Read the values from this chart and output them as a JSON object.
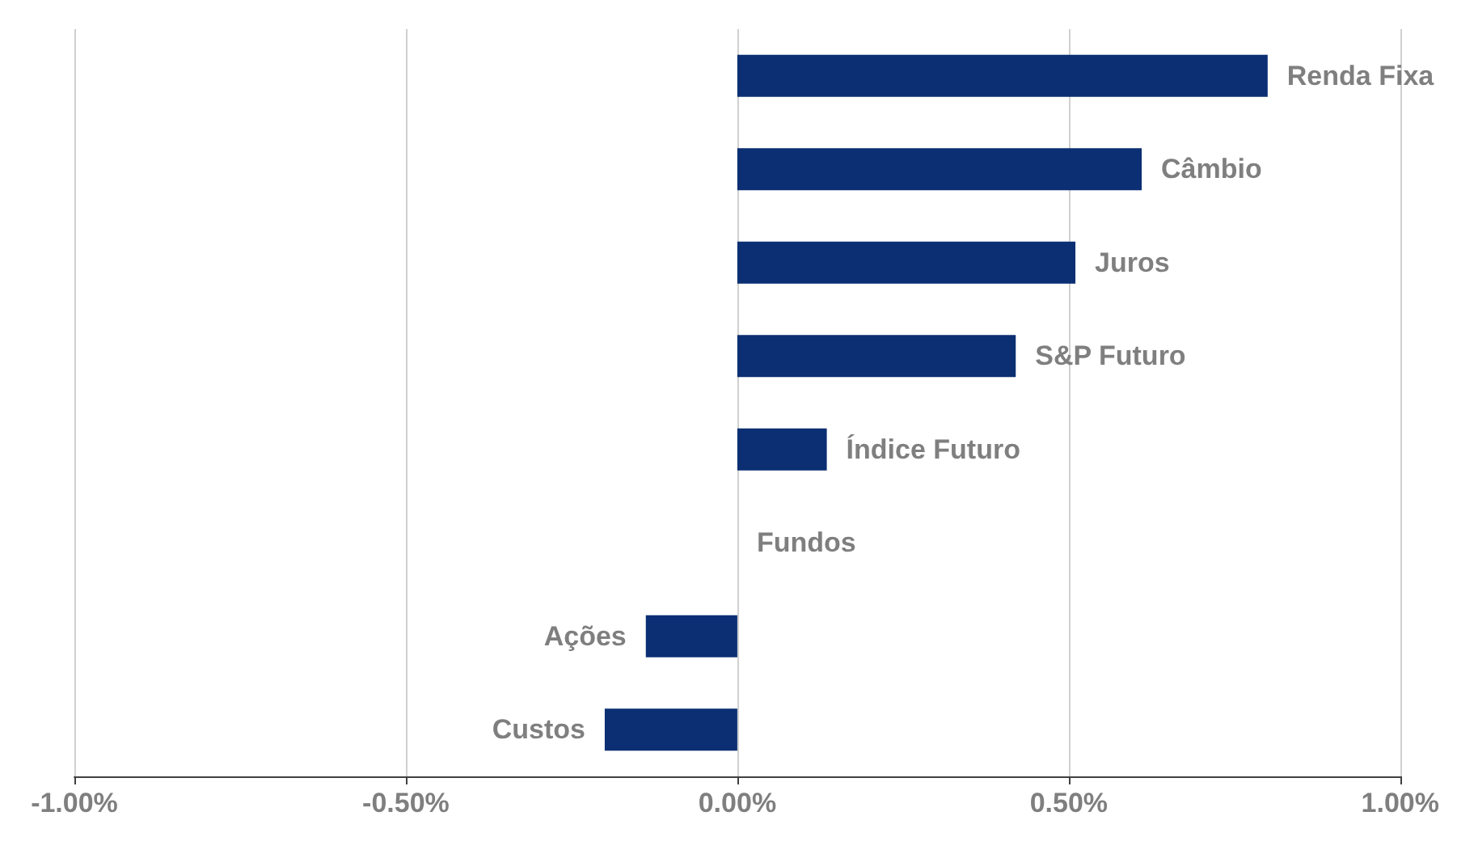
{
  "chart_data": {
    "type": "bar",
    "orientation": "horizontal",
    "categories": [
      "Renda Fixa",
      "Câmbio",
      "Juros",
      "S&P Futuro",
      "Índice Futuro",
      "Fundos",
      "Ações",
      "Custos"
    ],
    "values": [
      0.8,
      0.61,
      0.51,
      0.42,
      0.135,
      0,
      -0.138,
      -0.2
    ],
    "color": "#0b2f72",
    "xlim": [
      -1,
      1
    ],
    "xticks": [
      {
        "value": -1,
        "label": "-1.00%"
      },
      {
        "value": -0.5,
        "label": "-0.50%"
      },
      {
        "value": 0,
        "label": "0.00%"
      },
      {
        "value": 0.5,
        "label": "0.50%"
      },
      {
        "value": 1,
        "label": "1.00%"
      }
    ],
    "grid": "x",
    "tick_labels": "x"
  }
}
